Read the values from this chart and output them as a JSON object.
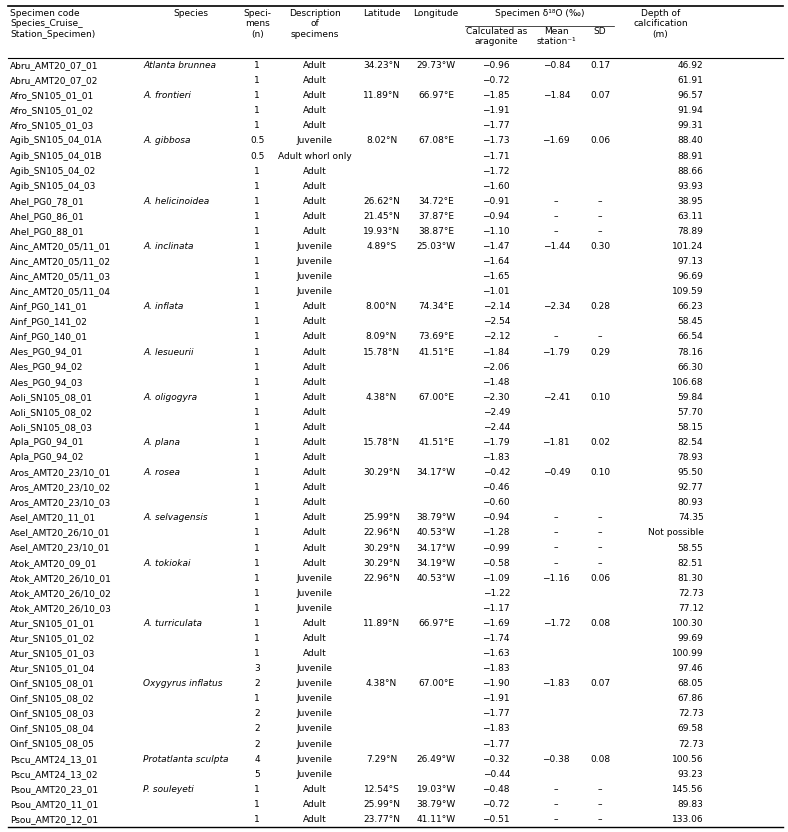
{
  "rows": [
    [
      "Abru_AMT20_07_01",
      "Atlanta brunnea",
      "1",
      "Adult",
      "34.23°N",
      "29.73°W",
      "−0.96",
      "−0.84",
      "0.17",
      "46.92"
    ],
    [
      "Abru_AMT20_07_02",
      "",
      "1",
      "Adult",
      "",
      "",
      "−0.72",
      "",
      "",
      "61.91"
    ],
    [
      "Afro_SN105_01_01",
      "A. frontieri",
      "1",
      "Adult",
      "11.89°N",
      "66.97°E",
      "−1.85",
      "−1.84",
      "0.07",
      "96.57"
    ],
    [
      "Afro_SN105_01_02",
      "",
      "1",
      "Adult",
      "",
      "",
      "−1.91",
      "",
      "",
      "91.94"
    ],
    [
      "Afro_SN105_01_03",
      "",
      "1",
      "Adult",
      "",
      "",
      "−1.77",
      "",
      "",
      "99.31"
    ],
    [
      "Agib_SN105_04_01A",
      "A. gibbosa",
      "0.5",
      "Juvenile",
      "8.02°N",
      "67.08°E",
      "−1.73",
      "−1.69",
      "0.06",
      "88.40"
    ],
    [
      "Agib_SN105_04_01B",
      "",
      "0.5",
      "Adult whorl only",
      "",
      "",
      "−1.71",
      "",
      "",
      "88.91"
    ],
    [
      "Agib_SN105_04_02",
      "",
      "1",
      "Adult",
      "",
      "",
      "−1.72",
      "",
      "",
      "88.66"
    ],
    [
      "Agib_SN105_04_03",
      "",
      "1",
      "Adult",
      "",
      "",
      "−1.60",
      "",
      "",
      "93.93"
    ],
    [
      "Ahel_PG0_78_01",
      "A. helicinoidea",
      "1",
      "Adult",
      "26.62°N",
      "34.72°E",
      "−0.91",
      "–",
      "–",
      "38.95"
    ],
    [
      "Ahel_PG0_86_01",
      "",
      "1",
      "Adult",
      "21.45°N",
      "37.87°E",
      "−0.94",
      "–",
      "–",
      "63.11"
    ],
    [
      "Ahel_PG0_88_01",
      "",
      "1",
      "Adult",
      "19.93°N",
      "38.87°E",
      "−1.10",
      "–",
      "–",
      "78.89"
    ],
    [
      "Ainc_AMT20_05/11_01",
      "A. inclinata",
      "1",
      "Juvenile",
      "4.89°S",
      "25.03°W",
      "−1.47",
      "−1.44",
      "0.30",
      "101.24"
    ],
    [
      "Ainc_AMT20_05/11_02",
      "",
      "1",
      "Juvenile",
      "",
      "",
      "−1.64",
      "",
      "",
      "97.13"
    ],
    [
      "Ainc_AMT20_05/11_03",
      "",
      "1",
      "Juvenile",
      "",
      "",
      "−1.65",
      "",
      "",
      "96.69"
    ],
    [
      "Ainc_AMT20_05/11_04",
      "",
      "1",
      "Juvenile",
      "",
      "",
      "−1.01",
      "",
      "",
      "109.59"
    ],
    [
      "Ainf_PG0_141_01",
      "A. inflata",
      "1",
      "Adult",
      "8.00°N",
      "74.34°E",
      "−2.14",
      "−2.34",
      "0.28",
      "66.23"
    ],
    [
      "Ainf_PG0_141_02",
      "",
      "1",
      "Adult",
      "",
      "",
      "−2.54",
      "",
      "",
      "58.45"
    ],
    [
      "Ainf_PG0_140_01",
      "",
      "1",
      "Adult",
      "8.09°N",
      "73.69°E",
      "−2.12",
      "–",
      "–",
      "66.54"
    ],
    [
      "Ales_PG0_94_01",
      "A. lesueurii",
      "1",
      "Adult",
      "15.78°N",
      "41.51°E",
      "−1.84",
      "−1.79",
      "0.29",
      "78.16"
    ],
    [
      "Ales_PG0_94_02",
      "",
      "1",
      "Adult",
      "",
      "",
      "−2.06",
      "",
      "",
      "66.30"
    ],
    [
      "Ales_PG0_94_03",
      "",
      "1",
      "Adult",
      "",
      "",
      "−1.48",
      "",
      "",
      "106.68"
    ],
    [
      "Aoli_SN105_08_01",
      "A. oligogyra",
      "1",
      "Adult",
      "4.38°N",
      "67.00°E",
      "−2.30",
      "−2.41",
      "0.10",
      "59.84"
    ],
    [
      "Aoli_SN105_08_02",
      "",
      "1",
      "Adult",
      "",
      "",
      "−2.49",
      "",
      "",
      "57.70"
    ],
    [
      "Aoli_SN105_08_03",
      "",
      "1",
      "Adult",
      "",
      "",
      "−2.44",
      "",
      "",
      "58.15"
    ],
    [
      "Apla_PG0_94_01",
      "A. plana",
      "1",
      "Adult",
      "15.78°N",
      "41.51°E",
      "−1.79",
      "−1.81",
      "0.02",
      "82.54"
    ],
    [
      "Apla_PG0_94_02",
      "",
      "1",
      "Adult",
      "",
      "",
      "−1.83",
      "",
      "",
      "78.93"
    ],
    [
      "Aros_AMT20_23/10_01",
      "A. rosea",
      "1",
      "Adult",
      "30.29°N",
      "34.17°W",
      "−0.42",
      "−0.49",
      "0.10",
      "95.50"
    ],
    [
      "Aros_AMT20_23/10_02",
      "",
      "1",
      "Adult",
      "",
      "",
      "−0.46",
      "",
      "",
      "92.77"
    ],
    [
      "Aros_AMT20_23/10_03",
      "",
      "1",
      "Adult",
      "",
      "",
      "−0.60",
      "",
      "",
      "80.93"
    ],
    [
      "Asel_AMT20_11_01",
      "A. selvagensis",
      "1",
      "Adult",
      "25.99°N",
      "38.79°W",
      "−0.94",
      "–",
      "–",
      "74.35"
    ],
    [
      "Asel_AMT20_26/10_01",
      "",
      "1",
      "Adult",
      "22.96°N",
      "40.53°W",
      "−1.28",
      "–",
      "–",
      "Not possible"
    ],
    [
      "Asel_AMT20_23/10_01",
      "",
      "1",
      "Adult",
      "30.29°N",
      "34.17°W",
      "−0.99",
      "–",
      "–",
      "58.55"
    ],
    [
      "Atok_AMT20_09_01",
      "A. tokiokai",
      "1",
      "Adult",
      "30.29°N",
      "34.19°W",
      "−0.58",
      "–",
      "–",
      "82.51"
    ],
    [
      "Atok_AMT20_26/10_01",
      "",
      "1",
      "Juvenile",
      "22.96°N",
      "40.53°W",
      "−1.09",
      "−1.16",
      "0.06",
      "81.30"
    ],
    [
      "Atok_AMT20_26/10_02",
      "",
      "1",
      "Juvenile",
      "",
      "",
      "−1.22",
      "",
      "",
      "72.73"
    ],
    [
      "Atok_AMT20_26/10_03",
      "",
      "1",
      "Juvenile",
      "",
      "",
      "−1.17",
      "",
      "",
      "77.12"
    ],
    [
      "Atur_SN105_01_01",
      "A. turriculata",
      "1",
      "Adult",
      "11.89°N",
      "66.97°E",
      "−1.69",
      "−1.72",
      "0.08",
      "100.30"
    ],
    [
      "Atur_SN105_01_02",
      "",
      "1",
      "Adult",
      "",
      "",
      "−1.74",
      "",
      "",
      "99.69"
    ],
    [
      "Atur_SN105_01_03",
      "",
      "1",
      "Adult",
      "",
      "",
      "−1.63",
      "",
      "",
      "100.99"
    ],
    [
      "Atur_SN105_01_04",
      "",
      "3",
      "Juvenile",
      "",
      "",
      "−1.83",
      "",
      "",
      "97.46"
    ],
    [
      "Oinf_SN105_08_01",
      "Oxygyrus inflatus",
      "2",
      "Juvenile",
      "4.38°N",
      "67.00°E",
      "−1.90",
      "−1.83",
      "0.07",
      "68.05"
    ],
    [
      "Oinf_SN105_08_02",
      "",
      "1",
      "Juvenile",
      "",
      "",
      "−1.91",
      "",
      "",
      "67.86"
    ],
    [
      "Oinf_SN105_08_03",
      "",
      "2",
      "Juvenile",
      "",
      "",
      "−1.77",
      "",
      "",
      "72.73"
    ],
    [
      "Oinf_SN105_08_04",
      "",
      "2",
      "Juvenile",
      "",
      "",
      "−1.83",
      "",
      "",
      "69.58"
    ],
    [
      "Oinf_SN105_08_05",
      "",
      "2",
      "Juvenile",
      "",
      "",
      "−1.77",
      "",
      "",
      "72.73"
    ],
    [
      "Pscu_AMT24_13_01",
      "Protatlanta sculpta",
      "4",
      "Juvenile",
      "7.29°N",
      "26.49°W",
      "−0.32",
      "−0.38",
      "0.08",
      "100.56"
    ],
    [
      "Pscu_AMT24_13_02",
      "",
      "5",
      "Juvenile",
      "",
      "",
      "−0.44",
      "",
      "",
      "93.23"
    ],
    [
      "Psou_AMT20_23_01",
      "P. souleyeti",
      "1",
      "Adult",
      "12.54°S",
      "19.03°W",
      "−0.48",
      "–",
      "–",
      "145.56"
    ],
    [
      "Psou_AMT20_11_01",
      "",
      "1",
      "Adult",
      "25.99°N",
      "38.79°W",
      "−0.72",
      "–",
      "–",
      "89.83"
    ],
    [
      "Psou_AMT20_12_01",
      "",
      "1",
      "Adult",
      "23.77°N",
      "41.11°W",
      "−0.51",
      "–",
      "–",
      "133.06"
    ]
  ],
  "italic_species": [
    "Atlanta brunnea",
    "A. frontieri",
    "A. gibbosa",
    "A. helicinoidea",
    "A. inclinata",
    "A. inflata",
    "A. lesueurii",
    "A. oligogyra",
    "A. plana",
    "A. rosea",
    "A. selvagensis",
    "A. tokiokai",
    "A. turriculata",
    "Oxygyrus inflatus",
    "Protatlanta sculpta",
    "P. souleyeti"
  ],
  "font_size": 6.5,
  "header_font_size": 6.5,
  "fig_width": 7.88,
  "fig_height": 8.32,
  "dpi": 100
}
